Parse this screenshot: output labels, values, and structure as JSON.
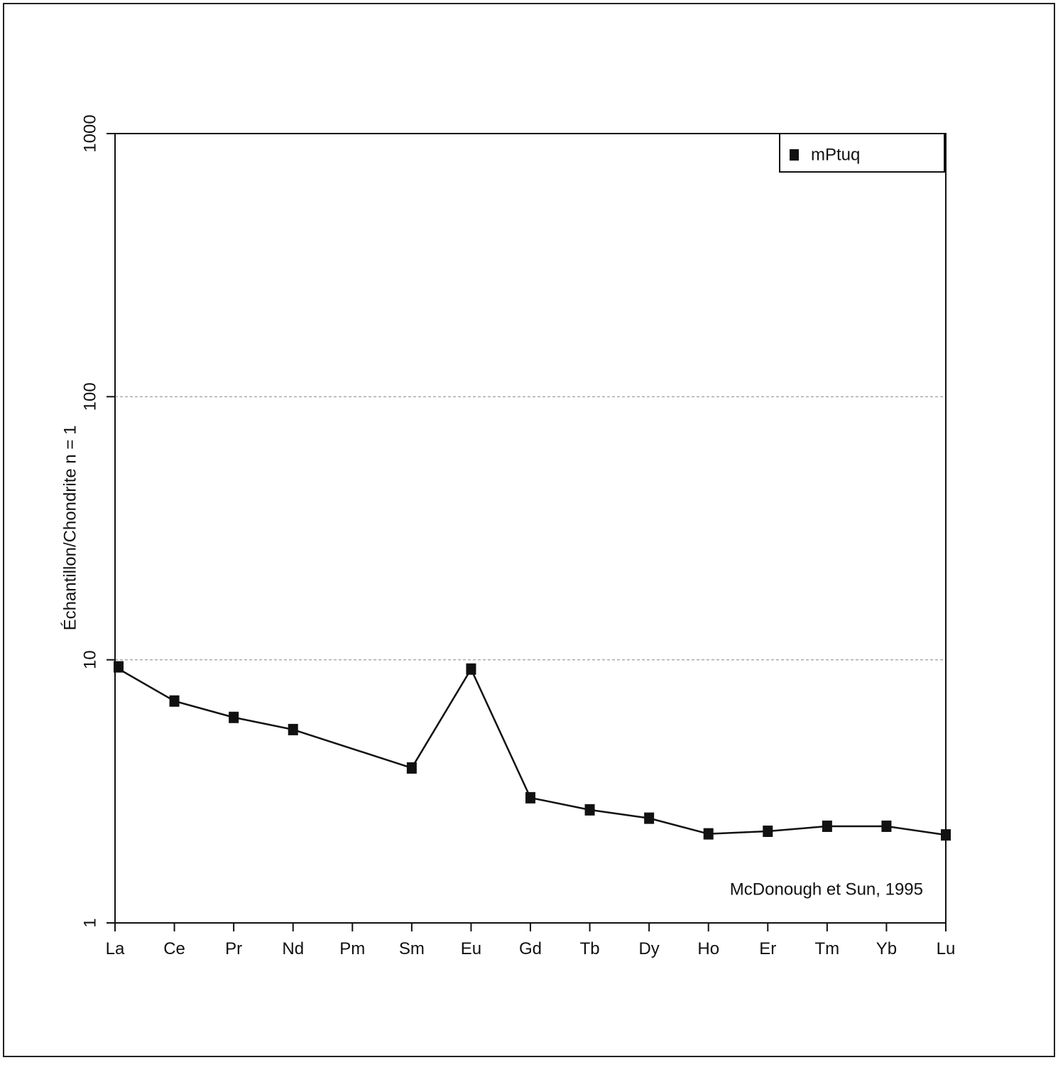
{
  "chart_data": {
    "type": "line",
    "y_label": "Échantillon/Chondrite n = 1",
    "annotation": "McDonough et Sun, 1995",
    "categories": [
      "La",
      "Ce",
      "Pr",
      "Nd",
      "Pm",
      "Sm",
      "Eu",
      "Gd",
      "Tb",
      "Dy",
      "Ho",
      "Er",
      "Tm",
      "Yb",
      "Lu"
    ],
    "series": [
      {
        "name": "mPtuq",
        "color": "#111111",
        "values": [
          9.4,
          6.97,
          6.04,
          5.43,
          null,
          3.88,
          9.22,
          2.99,
          2.69,
          2.5,
          2.18,
          2.23,
          2.33,
          2.33,
          2.16
        ]
      }
    ],
    "ylim": [
      1,
      1000
    ],
    "yticks": [
      1,
      10,
      100,
      1000
    ],
    "log_y": true,
    "grid": true,
    "legend": "upper right"
  }
}
